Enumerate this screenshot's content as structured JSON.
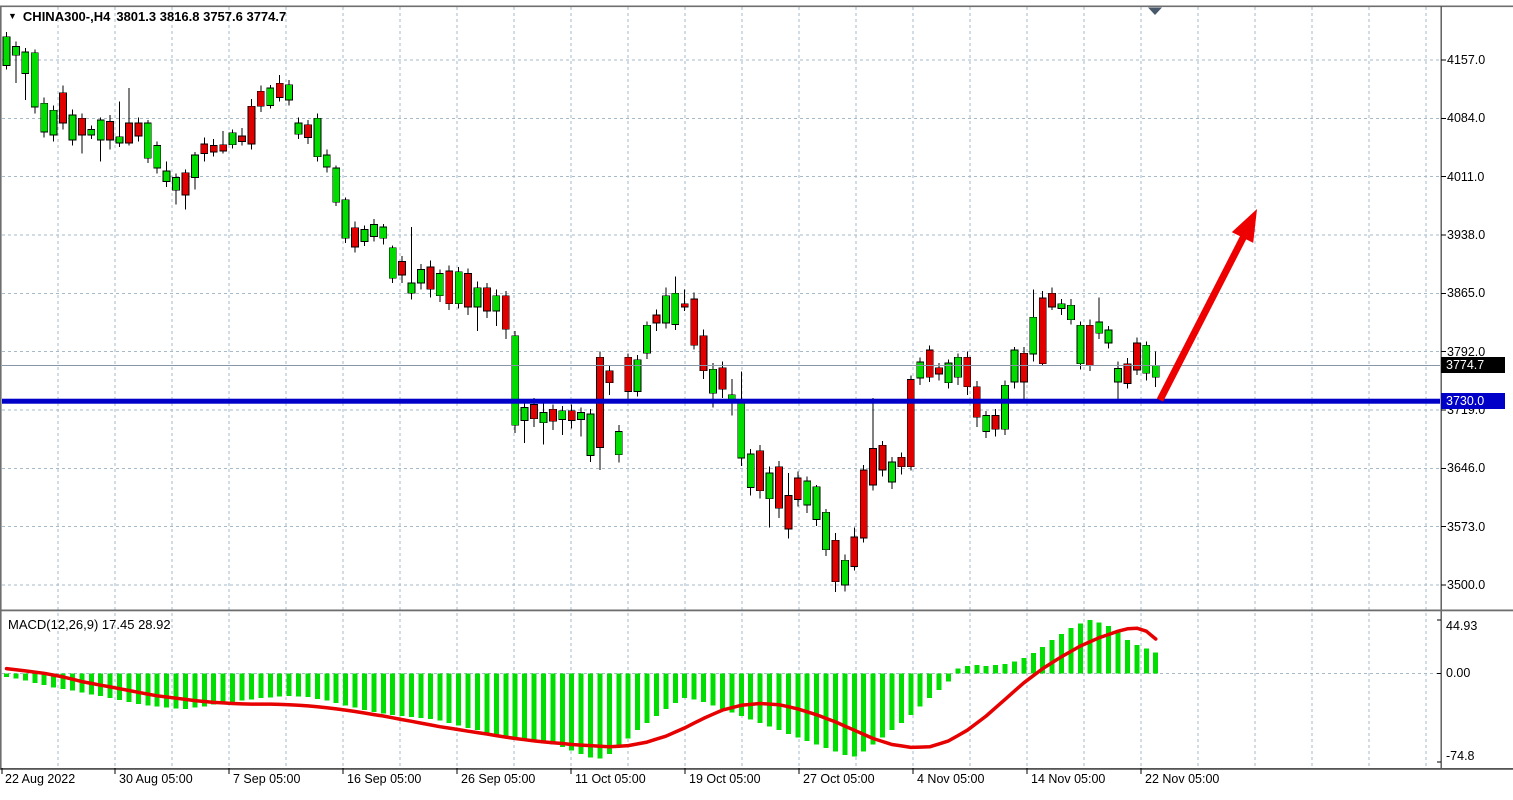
{
  "header": {
    "symbol": "CHINA300-,H4",
    "ohlc": "3801.3 3816.8 3757.6 3774.7"
  },
  "macd_label": "MACD(12,26,9) 17.45 28.92",
  "price_axis": {
    "labels": [
      {
        "text": "4157.0",
        "price": 4157
      },
      {
        "text": "4084.0",
        "price": 4084
      },
      {
        "text": "4011.0",
        "price": 4011
      },
      {
        "text": "3938.0",
        "price": 3938
      },
      {
        "text": "3865.0",
        "price": 3865
      },
      {
        "text": "3792.0",
        "price": 3792
      },
      {
        "text": "3719.0",
        "price": 3719
      },
      {
        "text": "3646.0",
        "price": 3646
      },
      {
        "text": "3573.0",
        "price": 3573
      },
      {
        "text": "3500.0",
        "price": 3500
      }
    ],
    "current_badge": {
      "text": "3774.7",
      "price": 3774.7
    },
    "support_badge": {
      "text": "3730.0",
      "price": 3730
    }
  },
  "macd_axis": {
    "labels": [
      {
        "text": "44.93",
        "value": 44.93
      },
      {
        "text": "0.00",
        "value": 0
      },
      {
        "text": "-74.8",
        "value": -74.8
      }
    ]
  },
  "time_axis": {
    "labels": [
      "22 Aug 2022",
      "30 Aug 05:00",
      "7 Sep 05:00",
      "16 Sep 05:00",
      "26 Sep 05:00",
      "11 Oct 05:00",
      "19 Oct 05:00",
      "27 Oct 05:00",
      "4 Nov 05:00",
      "14 Nov 05:00",
      "22 Nov 05:00"
    ]
  },
  "colors": {
    "bull": "#00DC00",
    "bear": "#E00000",
    "outline": "#000000",
    "macd_hist": "#00DD00",
    "macd_signal": "#E60000",
    "support_line": "#0000C8",
    "price_line": "#8896A8",
    "grid": "#A6BACA",
    "arrow": "#EE0000",
    "badge_current_bg": "#000000",
    "badge_support_bg": "#0000C8",
    "border": "#6E6E6E",
    "marker": "#48596B"
  },
  "chart_data": {
    "type": "candlestick",
    "title": "CHINA300-,H4",
    "timeframe": "H4",
    "ohlc_display": {
      "open": 3801.3,
      "high": 3816.8,
      "low": 3757.6,
      "close": 3774.7
    },
    "ylim": [
      3500,
      4157
    ],
    "price_gridlines": [
      4157,
      4084,
      4011,
      3938,
      3865,
      3792,
      3719,
      3646,
      3573,
      3500
    ],
    "support_level": 3730.0,
    "current_price": 3774.7,
    "annotations": [
      {
        "type": "arrow-up-right",
        "from_price": 3730,
        "to_price": 3960,
        "meaning": "projected bullish breakout"
      }
    ],
    "candles": [
      [
        4150,
        4192,
        4145,
        4186
      ],
      [
        4163,
        4180,
        4128,
        4174
      ],
      [
        4140,
        4172,
        4107,
        4167
      ],
      [
        4098,
        4170,
        4090,
        4166
      ],
      [
        4067,
        4110,
        4060,
        4103
      ],
      [
        4063,
        4100,
        4055,
        4094
      ],
      [
        4116,
        4125,
        4070,
        4078
      ],
      [
        4057,
        4095,
        4050,
        4088
      ],
      [
        4084,
        4090,
        4040,
        4063
      ],
      [
        4063,
        4075,
        4058,
        4070
      ],
      [
        4057,
        4085,
        4030,
        4082
      ],
      [
        4080,
        4088,
        4045,
        4057
      ],
      [
        4053,
        4105,
        4048,
        4061
      ],
      [
        4078,
        4122,
        4050,
        4053
      ],
      [
        4078,
        4085,
        4055,
        4062
      ],
      [
        4034,
        4082,
        4028,
        4078
      ],
      [
        4022,
        4055,
        4015,
        4050
      ],
      [
        4005,
        4030,
        3998,
        4018
      ],
      [
        3994,
        4015,
        3976,
        4010
      ],
      [
        4016,
        4020,
        3970,
        3988
      ],
      [
        4010,
        4042,
        3995,
        4038
      ],
      [
        4052,
        4060,
        4030,
        4040
      ],
      [
        4050,
        4058,
        4036,
        4042
      ],
      [
        4051,
        4068,
        4040,
        4043
      ],
      [
        4051,
        4070,
        4046,
        4066
      ],
      [
        4062,
        4072,
        4050,
        4055
      ],
      [
        4099,
        4108,
        4045,
        4052
      ],
      [
        4118,
        4125,
        4092,
        4099
      ],
      [
        4100,
        4126,
        4096,
        4122
      ],
      [
        4128,
        4138,
        4105,
        4110
      ],
      [
        4107,
        4132,
        4100,
        4126
      ],
      [
        4064,
        4085,
        4058,
        4078
      ],
      [
        4076,
        4082,
        4052,
        4060
      ],
      [
        4036,
        4090,
        4030,
        4084
      ],
      [
        4023,
        4045,
        4016,
        4038
      ],
      [
        3979,
        4025,
        3974,
        4022
      ],
      [
        3934,
        3985,
        3928,
        3982
      ],
      [
        3947,
        3955,
        3916,
        3923
      ],
      [
        3930,
        3950,
        3924,
        3945
      ],
      [
        3936,
        3958,
        3930,
        3951
      ],
      [
        3934,
        3952,
        3926,
        3948
      ],
      [
        3884,
        3925,
        3878,
        3922
      ],
      [
        3905,
        3912,
        3878,
        3888
      ],
      [
        3865,
        3948,
        3857,
        3878
      ],
      [
        3878,
        3902,
        3870,
        3895
      ],
      [
        3898,
        3906,
        3860,
        3870
      ],
      [
        3862,
        3895,
        3854,
        3890
      ],
      [
        3893,
        3900,
        3844,
        3852
      ],
      [
        3852,
        3898,
        3846,
        3892
      ],
      [
        3890,
        3896,
        3838,
        3848
      ],
      [
        3848,
        3880,
        3818,
        3872
      ],
      [
        3872,
        3878,
        3834,
        3843
      ],
      [
        3843,
        3870,
        3824,
        3862
      ],
      [
        3862,
        3868,
        3808,
        3820
      ],
      [
        3700,
        3818,
        3690,
        3812
      ],
      [
        3706,
        3730,
        3678,
        3722
      ],
      [
        3726,
        3734,
        3698,
        3708
      ],
      [
        3703,
        3728,
        3676,
        3716
      ],
      [
        3720,
        3726,
        3694,
        3705
      ],
      [
        3707,
        3724,
        3688,
        3718
      ],
      [
        3718,
        3726,
        3696,
        3706
      ],
      [
        3707,
        3722,
        3686,
        3716
      ],
      [
        3662,
        3720,
        3654,
        3714
      ],
      [
        3785,
        3792,
        3644,
        3672
      ],
      [
        3768,
        3775,
        3738,
        3753
      ],
      [
        3663,
        3700,
        3653,
        3692
      ],
      [
        3785,
        3790,
        3733,
        3742
      ],
      [
        3742,
        3788,
        3736,
        3782
      ],
      [
        3790,
        3830,
        3783,
        3825
      ],
      [
        3838,
        3845,
        3818,
        3828
      ],
      [
        3828,
        3872,
        3821,
        3862
      ],
      [
        3826,
        3886,
        3819,
        3865
      ],
      [
        3852,
        3870,
        3843,
        3848
      ],
      [
        3858,
        3866,
        3795,
        3800
      ],
      [
        3812,
        3820,
        3758,
        3768
      ],
      [
        3740,
        3778,
        3722,
        3770
      ],
      [
        3772,
        3780,
        3734,
        3745
      ],
      [
        3732,
        3758,
        3712,
        3738
      ],
      [
        3659,
        3767,
        3649,
        3728
      ],
      [
        3622,
        3670,
        3612,
        3664
      ],
      [
        3668,
        3675,
        3608,
        3618
      ],
      [
        3608,
        3648,
        3572,
        3640
      ],
      [
        3648,
        3655,
        3584,
        3596
      ],
      [
        3612,
        3640,
        3558,
        3570
      ],
      [
        3634,
        3642,
        3598,
        3607
      ],
      [
        3600,
        3636,
        3590,
        3630
      ],
      [
        3582,
        3625,
        3574,
        3623
      ],
      [
        3544,
        3595,
        3536,
        3591
      ],
      [
        3556,
        3565,
        3491,
        3504
      ],
      [
        3500,
        3538,
        3492,
        3531
      ],
      [
        3560,
        3572,
        3518,
        3523
      ],
      [
        3644,
        3650,
        3553,
        3559
      ],
      [
        3671,
        3734,
        3618,
        3625
      ],
      [
        3675,
        3680,
        3636,
        3644
      ],
      [
        3629,
        3660,
        3620,
        3654
      ],
      [
        3660,
        3666,
        3638,
        3648
      ],
      [
        3757,
        3762,
        3643,
        3648
      ],
      [
        3759,
        3785,
        3750,
        3779
      ],
      [
        3794,
        3800,
        3754,
        3760
      ],
      [
        3772,
        3778,
        3756,
        3764
      ],
      [
        3753,
        3782,
        3746,
        3778
      ],
      [
        3760,
        3790,
        3750,
        3785
      ],
      [
        3785,
        3792,
        3738,
        3748
      ],
      [
        3748,
        3755,
        3698,
        3710
      ],
      [
        3692,
        3718,
        3684,
        3712
      ],
      [
        3712,
        3720,
        3686,
        3695
      ],
      [
        3695,
        3756,
        3688,
        3750
      ],
      [
        3754,
        3798,
        3746,
        3794
      ],
      [
        3790,
        3798,
        3731,
        3754
      ],
      [
        3789,
        3870,
        3780,
        3835
      ],
      [
        3859,
        3868,
        3774,
        3777
      ],
      [
        3865,
        3872,
        3844,
        3848
      ],
      [
        3846,
        3858,
        3838,
        3852
      ],
      [
        3832,
        3858,
        3826,
        3850
      ],
      [
        3777,
        3830,
        3770,
        3825
      ],
      [
        3825,
        3832,
        3768,
        3775
      ],
      [
        3815,
        3860,
        3808,
        3829
      ],
      [
        3803,
        3824,
        3796,
        3819
      ],
      [
        3754,
        3780,
        3729,
        3771
      ],
      [
        3777,
        3784,
        3746,
        3752
      ],
      [
        3803,
        3810,
        3763,
        3769
      ],
      [
        3765,
        3805,
        3756,
        3800
      ],
      [
        3760,
        3792,
        3748,
        3774.7
      ]
    ],
    "macd": {
      "params": [
        12,
        26,
        9
      ],
      "macd_value": 17.45,
      "signal_value": 28.92,
      "ylim": [
        -74.8,
        44.93
      ],
      "histogram": [
        -3,
        -4.5,
        -6,
        -8,
        -10,
        -12,
        -13.3,
        -14.7,
        -16,
        -17.7,
        -19.3,
        -21,
        -22.7,
        -24.3,
        -26,
        -27,
        -28,
        -29,
        -29.5,
        -30,
        -29,
        -28,
        -26.5,
        -25,
        -24,
        -23,
        -22,
        -21,
        -20.2,
        -19.5,
        -19,
        -19.5,
        -20,
        -21.5,
        -23,
        -25,
        -27,
        -29,
        -31,
        -32.5,
        -34,
        -35,
        -36,
        -36.8,
        -37.5,
        -38.7,
        -40,
        -42,
        -44,
        -46,
        -48,
        -50,
        -52,
        -54,
        -56,
        -57,
        -58,
        -59,
        -60,
        -62,
        -65,
        -68,
        -71,
        -72,
        -68,
        -62,
        -55,
        -48,
        -42,
        -36,
        -30,
        -25,
        -21,
        -22,
        -24,
        -27,
        -30,
        -33,
        -36,
        -39,
        -42,
        -45,
        -48,
        -51,
        -54,
        -57,
        -60,
        -63,
        -66,
        -69,
        -70,
        -66,
        -60,
        -54,
        -48,
        -42,
        -35,
        -28,
        -21,
        -14,
        -7,
        4,
        6,
        7,
        6,
        7,
        8,
        10,
        13,
        17,
        22,
        28,
        33,
        38,
        42,
        44.9,
        43,
        40,
        35,
        28,
        24,
        21,
        17.45
      ],
      "signal": [
        4,
        3,
        2,
        1,
        0,
        -1.5,
        -3,
        -5,
        -7,
        -8.5,
        -10,
        -11.5,
        -13,
        -14.5,
        -16,
        -17.5,
        -19,
        -20,
        -21,
        -22,
        -23,
        -23.8,
        -24.5,
        -25,
        -25.5,
        -25.8,
        -26,
        -26,
        -26,
        -26.2,
        -26.5,
        -27,
        -27.5,
        -28.2,
        -29,
        -30,
        -31,
        -32.2,
        -33.5,
        -34.8,
        -36,
        -37.5,
        -39,
        -40.5,
        -42,
        -43.5,
        -45,
        -46.2,
        -47.5,
        -48.8,
        -50,
        -51.2,
        -52.5,
        -53.8,
        -55,
        -56,
        -57,
        -57.8,
        -58.5,
        -59.2,
        -60,
        -60.5,
        -61,
        -61.5,
        -62,
        -61.5,
        -61,
        -59.5,
        -58,
        -55.5,
        -53,
        -49.5,
        -46,
        -42,
        -38,
        -34.5,
        -31,
        -29,
        -27,
        -26.2,
        -25.5,
        -26,
        -26.5,
        -28.2,
        -30,
        -32.5,
        -35,
        -38,
        -41,
        -44.5,
        -48,
        -51.5,
        -55,
        -57.5,
        -60,
        -61.2,
        -62.5,
        -62.2,
        -62,
        -59.5,
        -57,
        -52.5,
        -48,
        -42,
        -36,
        -29,
        -22,
        -15,
        -8,
        -2,
        4,
        9,
        14,
        18.5,
        23,
        26.5,
        30,
        32.7,
        35.5,
        37.5,
        38,
        35.5,
        28.92
      ]
    }
  }
}
